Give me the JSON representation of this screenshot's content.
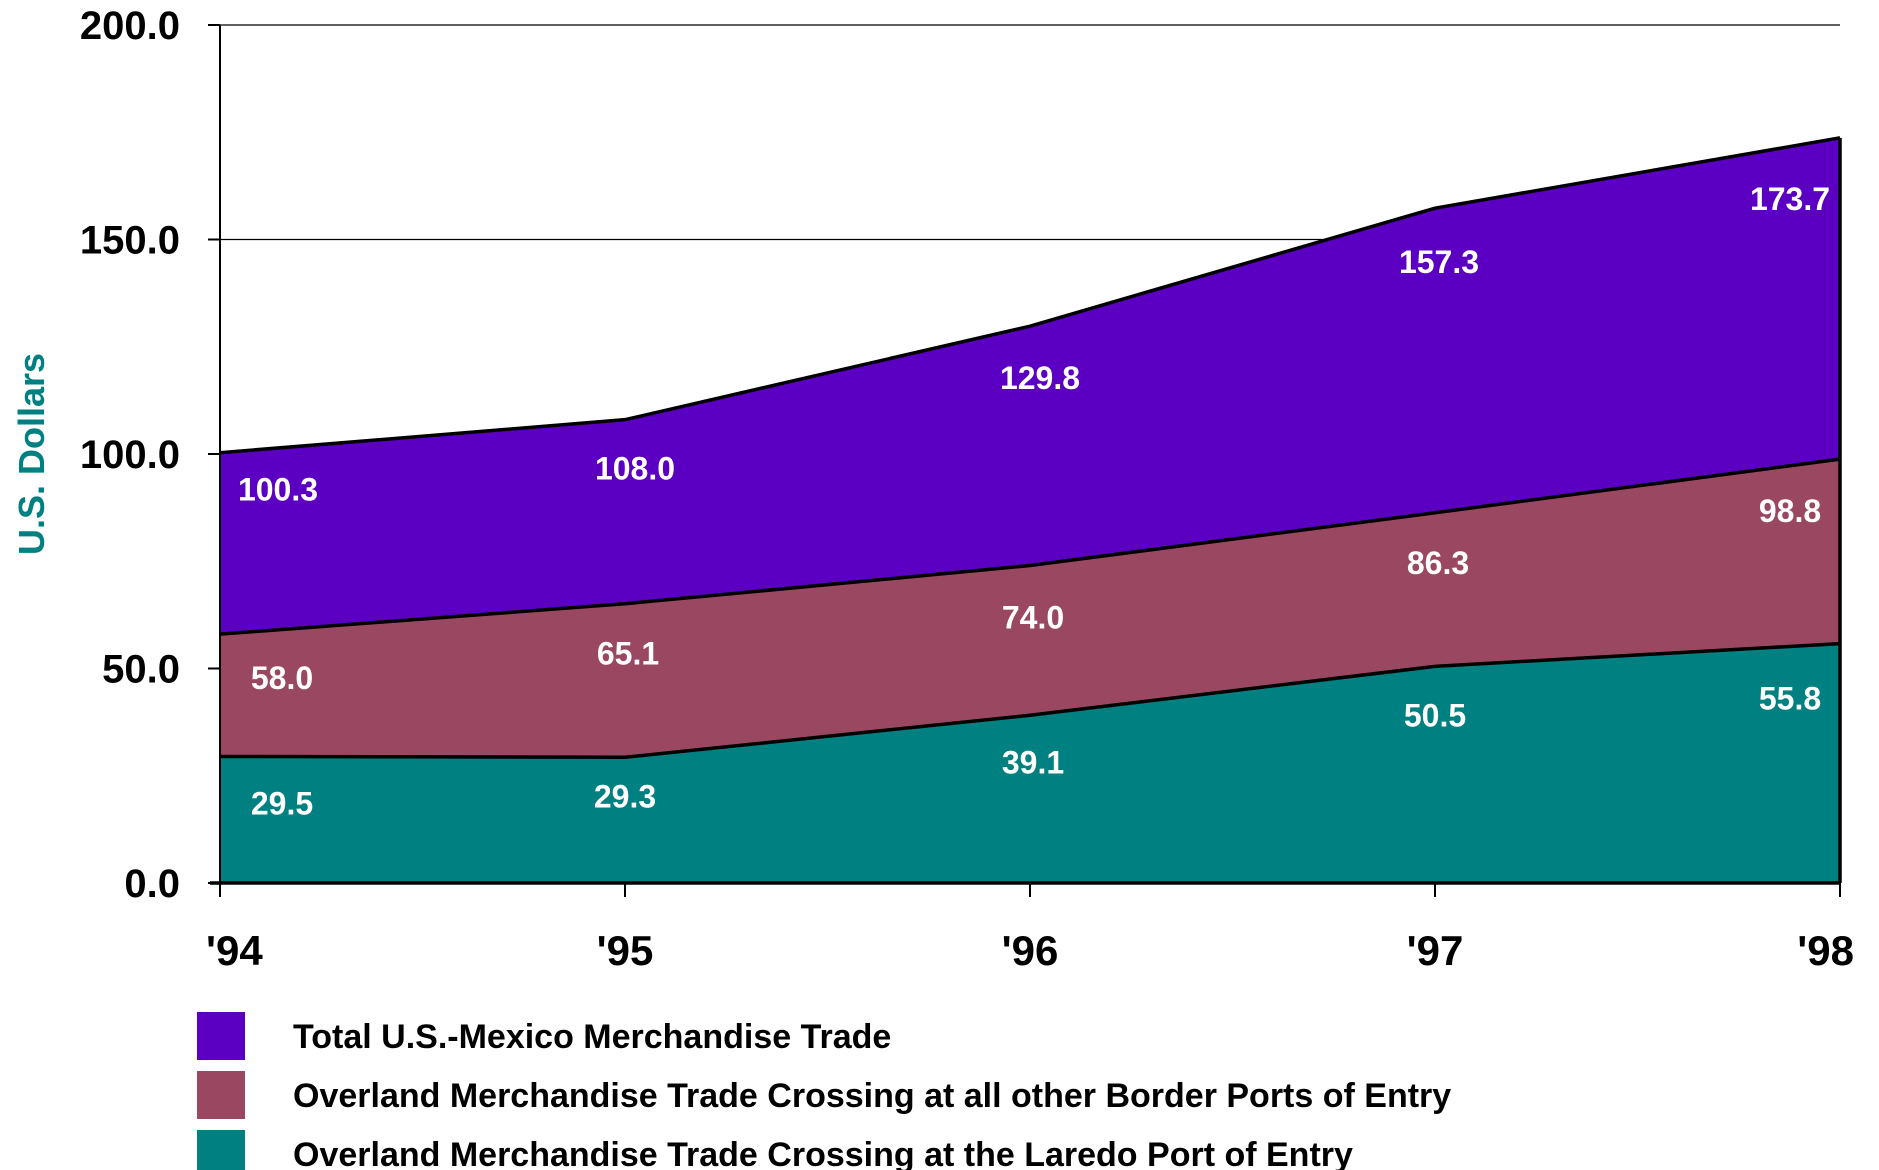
{
  "chart_data": {
    "type": "area",
    "stacked": false,
    "categories": [
      "'94",
      "'95",
      "'96",
      "'97",
      "'98"
    ],
    "ylabel": "U.S. Dollars",
    "xlabel": "",
    "ylim": [
      0,
      200
    ],
    "yticks": [
      "0.0",
      "50.0",
      "100.0",
      "150.0",
      "200.0"
    ],
    "ytick_values": [
      0,
      50,
      100,
      150,
      200
    ],
    "grid": "horizontal",
    "legend_position": "bottom",
    "series": [
      {
        "name": "Total U.S.-Mexico Merchandise Trade",
        "color": "#5b00c2",
        "values": [
          100.3,
          108.0,
          129.8,
          157.3,
          173.7
        ],
        "labels": [
          "100.3",
          "108.0",
          "129.8",
          "157.3",
          "173.7"
        ]
      },
      {
        "name": "Overland Merchandise Trade Crossing at all other Border Ports of Entry",
        "color": "#9a4862",
        "values": [
          58.0,
          65.1,
          74.0,
          86.3,
          98.8
        ],
        "labels": [
          "58.0",
          "65.1",
          "74.0",
          "86.3",
          "98.8"
        ]
      },
      {
        "name": "Overland Merchandise Trade Crossing at the Laredo Port of Entry",
        "color": "#008080",
        "values": [
          29.5,
          29.3,
          39.1,
          50.5,
          55.8
        ],
        "labels": [
          "29.5",
          "29.3",
          "39.1",
          "50.5",
          "55.8"
        ]
      }
    ],
    "ylabel_color": "#008080"
  }
}
